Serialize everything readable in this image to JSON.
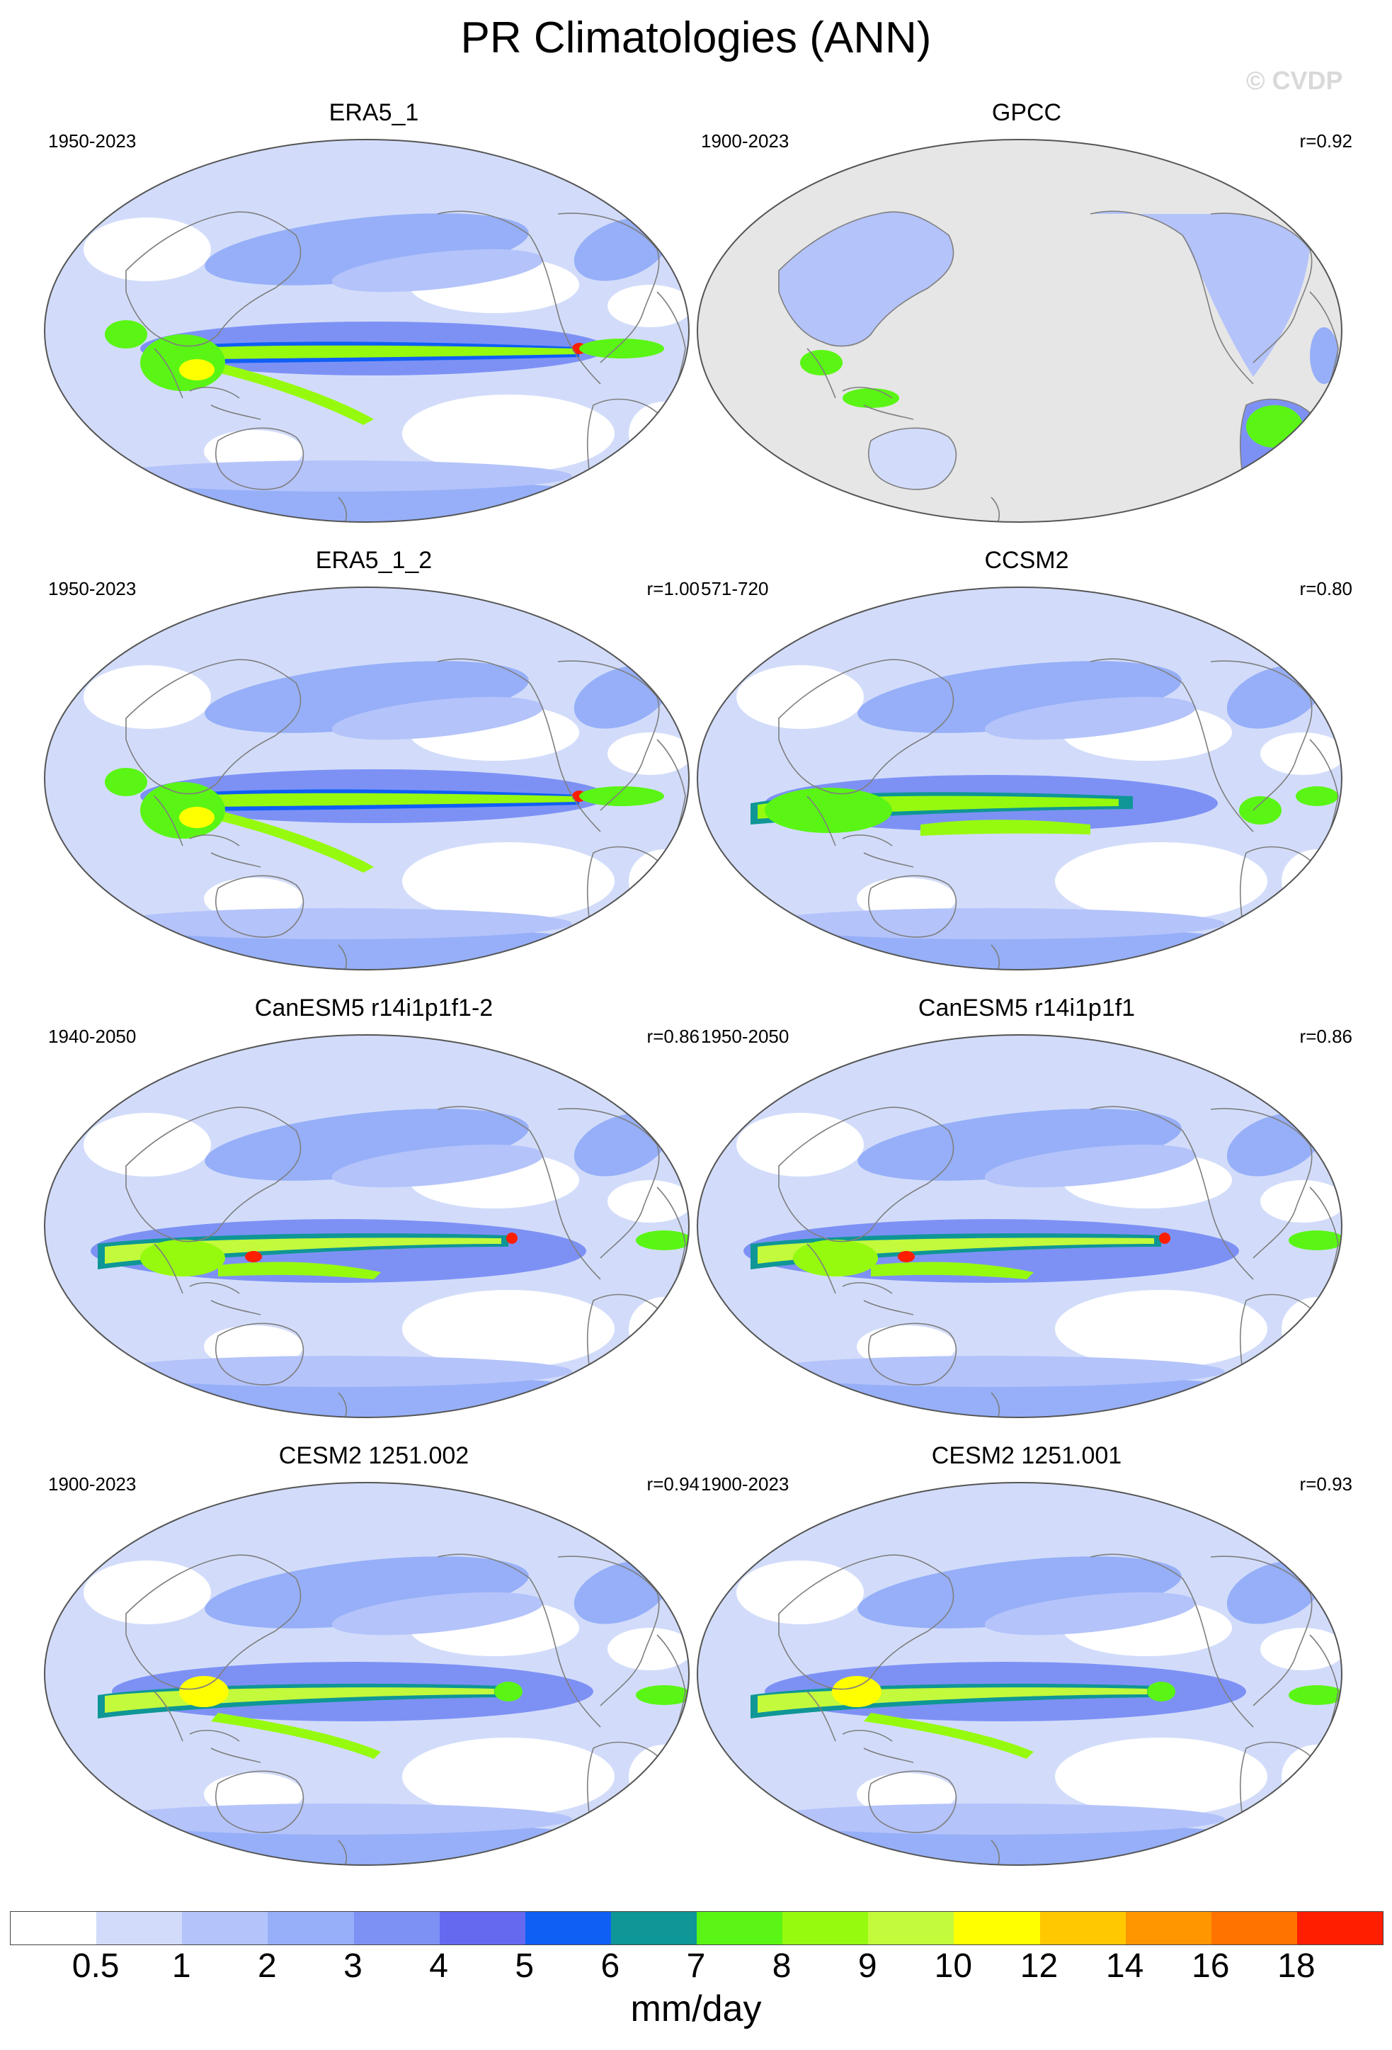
{
  "title": "PR Climatologies (ANN)",
  "watermark": "© CVDP",
  "panels": [
    {
      "title": "ERA5_1",
      "period": "1950-2023",
      "corr": "",
      "style": "era5"
    },
    {
      "title": "GPCC",
      "period": "1900-2023",
      "corr": "r=0.92",
      "style": "gpcc"
    },
    {
      "title": "ERA5_1_2",
      "period": "1950-2023",
      "corr": "r=1.00",
      "style": "era5"
    },
    {
      "title": "CCSM2",
      "period": "571-720",
      "corr": "r=0.80",
      "style": "ccsm"
    },
    {
      "title": "CanESM5 r14i1p1f1-2",
      "period": "1940-2050",
      "corr": "r=0.86",
      "style": "canesm"
    },
    {
      "title": "CanESM5 r14i1p1f1",
      "period": "1950-2050",
      "corr": "r=0.86",
      "style": "canesm"
    },
    {
      "title": "CESM2 1251.002",
      "period": "1900-2023",
      "corr": "r=0.94",
      "style": "cesm"
    },
    {
      "title": "CESM2 1251.001",
      "period": "1900-2023",
      "corr": "r=0.93",
      "style": "cesm"
    }
  ],
  "colorbar": {
    "labels": [
      "0.5",
      "1",
      "2",
      "3",
      "4",
      "5",
      "6",
      "7",
      "8",
      "9",
      "10",
      "12",
      "14",
      "16",
      "18"
    ],
    "colors": [
      "#ffffff",
      "#d2dcfa",
      "#b4c3fa",
      "#96aff8",
      "#7d91f5",
      "#6469f0",
      "#0f5ff5",
      "#0f9696",
      "#5af514",
      "#96fa0f",
      "#c3fa3c",
      "#ffff00",
      "#ffc800",
      "#ff9600",
      "#ff7300",
      "#ff1e00"
    ],
    "units": "mm/day"
  },
  "map_colors": {
    "land_missing": "#e6e6e6",
    "coast": "#7f7f7f",
    "outline": "#555555"
  }
}
